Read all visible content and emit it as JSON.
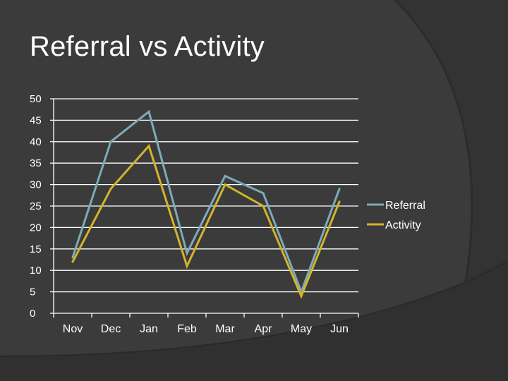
{
  "slide": {
    "title": "Referral vs Activity"
  },
  "colors": {
    "background": "#3b3b3b",
    "text": "#ffffff",
    "grid": "#ffffff",
    "referral": "#7eaab8",
    "activity": "#d4b42a"
  },
  "chart_data": {
    "type": "line",
    "title": "",
    "xlabel": "",
    "ylabel": "",
    "categories": [
      "Nov",
      "Dec",
      "Jan",
      "Feb",
      "Mar",
      "Apr",
      "May",
      "Jun"
    ],
    "ylim": [
      0,
      50
    ],
    "yticks": [
      0,
      5,
      10,
      15,
      20,
      25,
      30,
      35,
      40,
      45,
      50
    ],
    "grid": true,
    "legend": "right",
    "series": [
      {
        "name": "Referral",
        "color": "#7eaab8",
        "values": [
          13,
          40,
          47,
          14,
          32,
          28,
          5,
          29
        ]
      },
      {
        "name": "Activity",
        "color": "#d4b42a",
        "values": [
          12,
          29,
          39,
          11,
          30,
          25,
          4,
          26
        ]
      }
    ]
  }
}
